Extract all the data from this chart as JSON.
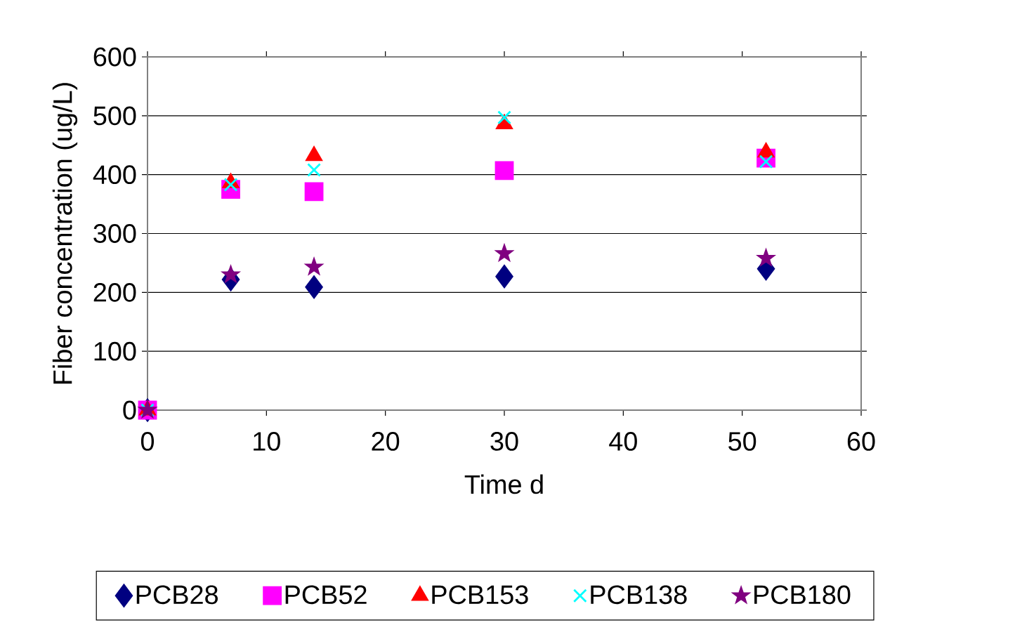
{
  "chart_data": {
    "type": "scatter",
    "xlabel": "Time d",
    "ylabel": "Fiber concentration (ug/L)",
    "x": [
      0,
      7,
      14,
      30,
      52
    ],
    "series": [
      {
        "name": "PCB28",
        "color": "#000080",
        "marker": "diamond",
        "values": [
          0,
          222,
          209,
          227,
          240
        ]
      },
      {
        "name": "PCB52",
        "color": "#ff00ff",
        "marker": "square",
        "values": [
          0,
          375,
          371,
          407,
          428
        ]
      },
      {
        "name": "PCB153",
        "color": "#ff0000",
        "marker": "triangle",
        "values": [
          0,
          386,
          432,
          486,
          438
        ]
      },
      {
        "name": "PCB138",
        "color": "#00ffff",
        "marker": "cross",
        "values": [
          0,
          383,
          408,
          497,
          422
        ]
      },
      {
        "name": "PCB180",
        "color": "#800080",
        "marker": "star",
        "values": [
          0,
          230,
          243,
          266,
          258
        ]
      }
    ],
    "xlim": [
      0,
      60
    ],
    "xticks": [
      0,
      10,
      20,
      30,
      40,
      50,
      60
    ],
    "ylim": [
      0,
      600
    ],
    "yticks": [
      0,
      100,
      200,
      300,
      400,
      500,
      600
    ],
    "grid": "y",
    "legend": "bottom"
  }
}
